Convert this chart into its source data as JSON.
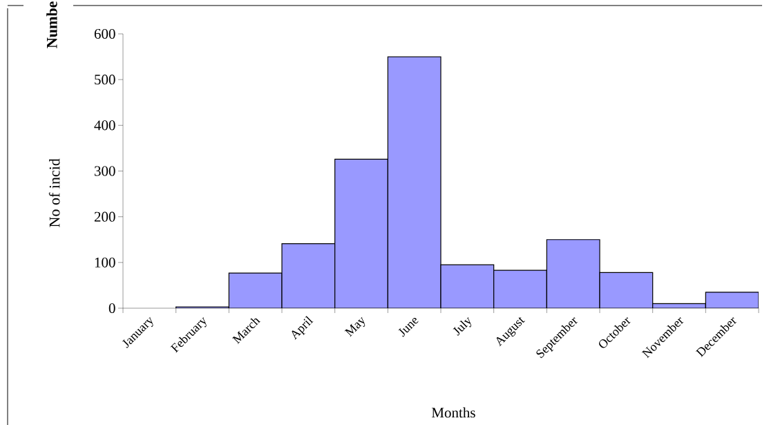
{
  "chart_data": {
    "type": "bar",
    "title": "Numbe",
    "ylabel": "No of incid",
    "xlabel": "Months",
    "categories": [
      "January",
      "February",
      "March",
      "April",
      "May",
      "June",
      "July",
      "August",
      "September",
      "October",
      "November",
      "December"
    ],
    "values": [
      null,
      3,
      77,
      141,
      326,
      550,
      95,
      83,
      150,
      78,
      10,
      35
    ],
    "color": "#9999ff",
    "ylim": [
      0,
      600
    ],
    "yticks": [
      0,
      100,
      200,
      300,
      400,
      500,
      600
    ]
  }
}
